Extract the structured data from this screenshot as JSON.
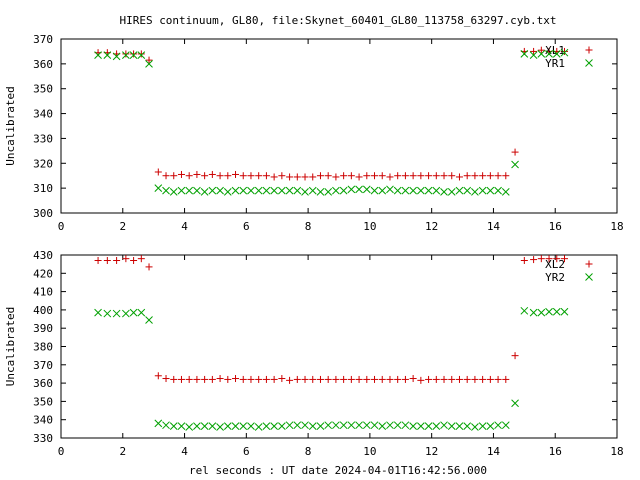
{
  "chart_data": [
    {
      "type": "scatter",
      "title": "HIRES continuum, GL80, file:Skynet_60401_GL80_113758_63297.cyb.txt",
      "xlabel": "",
      "ylabel": "Uncalibrated",
      "xlim": [
        0,
        18
      ],
      "ylim": [
        300,
        370
      ],
      "xticks": [
        0,
        2,
        4,
        6,
        8,
        10,
        12,
        14,
        16,
        18
      ],
      "yticks": [
        300,
        310,
        320,
        330,
        340,
        350,
        360,
        370
      ],
      "legend_position": "top-right",
      "grid": false,
      "series": [
        {
          "name": "XL1",
          "marker": "plus",
          "color": "#cc0000",
          "x": [
            1.2,
            1.5,
            1.8,
            2.1,
            2.35,
            2.6,
            2.85,
            3.15,
            3.4,
            3.65,
            3.9,
            4.15,
            4.4,
            4.65,
            4.9,
            5.15,
            5.4,
            5.65,
            5.9,
            6.15,
            6.4,
            6.65,
            6.9,
            7.15,
            7.4,
            7.65,
            7.9,
            8.15,
            8.4,
            8.65,
            8.9,
            9.15,
            9.4,
            9.65,
            9.9,
            10.15,
            10.4,
            10.65,
            10.9,
            11.15,
            11.4,
            11.65,
            11.9,
            12.15,
            12.4,
            12.65,
            12.9,
            13.15,
            13.4,
            13.65,
            13.9,
            14.15,
            14.4,
            14.7,
            15.0,
            15.3,
            15.55,
            15.8,
            16.05,
            16.3
          ],
          "y": [
            364.5,
            364.5,
            364,
            364,
            364,
            364,
            361.5,
            316.5,
            315,
            315,
            315.5,
            315,
            315.5,
            315,
            315.5,
            315,
            315,
            315.5,
            315,
            315,
            315,
            315,
            314.5,
            315,
            314.5,
            314.5,
            314.5,
            314.5,
            315,
            315,
            314.5,
            315,
            315,
            314.5,
            315,
            315,
            315,
            314.5,
            315,
            315,
            315,
            315,
            315,
            315,
            315,
            315,
            314.5,
            315,
            315,
            315,
            315,
            315,
            315,
            324.5,
            365,
            365,
            365.5,
            365,
            365,
            365
          ]
        },
        {
          "name": "YR1",
          "marker": "cross",
          "color": "#00a000",
          "x": [
            1.2,
            1.5,
            1.8,
            2.1,
            2.35,
            2.6,
            2.85,
            3.15,
            3.4,
            3.65,
            3.9,
            4.15,
            4.4,
            4.65,
            4.9,
            5.15,
            5.4,
            5.65,
            5.9,
            6.15,
            6.4,
            6.65,
            6.9,
            7.15,
            7.4,
            7.65,
            7.9,
            8.15,
            8.4,
            8.65,
            8.9,
            9.15,
            9.4,
            9.65,
            9.9,
            10.15,
            10.4,
            10.65,
            10.9,
            11.15,
            11.4,
            11.65,
            11.9,
            12.15,
            12.4,
            12.65,
            12.9,
            13.15,
            13.4,
            13.65,
            13.9,
            14.15,
            14.4,
            14.7,
            15.0,
            15.3,
            15.55,
            15.8,
            16.05,
            16.3
          ],
          "y": [
            363.5,
            363.5,
            363,
            363.5,
            363.5,
            363.5,
            360,
            310,
            309,
            308.5,
            309,
            309,
            309,
            308.5,
            309,
            309,
            308.5,
            309,
            309,
            309,
            309,
            309,
            309,
            309,
            309,
            309,
            308.5,
            309,
            308.5,
            308.5,
            309,
            309,
            309.5,
            309.5,
            309.5,
            309,
            309,
            309.5,
            309,
            309,
            309,
            309,
            309,
            309,
            308.5,
            308.5,
            309,
            309,
            308.5,
            309,
            309,
            309,
            308.5,
            319.5,
            364,
            363.5,
            364,
            364,
            364,
            364.5
          ]
        }
      ]
    },
    {
      "type": "scatter",
      "title": "",
      "xlabel": "rel seconds : UT date 2024-04-01T16:42:56.000",
      "ylabel": "Uncalibrated",
      "xlim": [
        0,
        18
      ],
      "ylim": [
        330,
        430
      ],
      "xticks": [
        0,
        2,
        4,
        6,
        8,
        10,
        12,
        14,
        16,
        18
      ],
      "yticks": [
        330,
        340,
        350,
        360,
        370,
        380,
        390,
        400,
        410,
        420,
        430
      ],
      "legend_position": "top-right",
      "grid": false,
      "series": [
        {
          "name": "XL2",
          "marker": "plus",
          "color": "#cc0000",
          "x": [
            1.2,
            1.5,
            1.8,
            2.1,
            2.35,
            2.6,
            2.85,
            3.15,
            3.4,
            3.65,
            3.9,
            4.15,
            4.4,
            4.65,
            4.9,
            5.15,
            5.4,
            5.65,
            5.9,
            6.15,
            6.4,
            6.65,
            6.9,
            7.15,
            7.4,
            7.65,
            7.9,
            8.15,
            8.4,
            8.65,
            8.9,
            9.15,
            9.4,
            9.65,
            9.9,
            10.15,
            10.4,
            10.65,
            10.9,
            11.15,
            11.4,
            11.65,
            11.9,
            12.15,
            12.4,
            12.65,
            12.9,
            13.15,
            13.4,
            13.65,
            13.9,
            14.15,
            14.4,
            14.7,
            15.0,
            15.3,
            15.55,
            15.8,
            16.05,
            16.3
          ],
          "y": [
            427,
            427,
            427,
            428,
            427,
            428,
            423.5,
            364,
            362.5,
            362,
            362,
            362,
            362,
            362,
            362,
            362.5,
            362,
            362.5,
            362,
            362,
            362,
            362,
            362,
            362.5,
            361.5,
            362,
            362,
            362,
            362,
            362,
            362,
            362,
            362,
            362,
            362,
            362,
            362,
            362,
            362,
            362,
            362.5,
            361.5,
            362,
            362,
            362,
            362,
            362,
            362,
            362,
            362,
            362,
            362,
            362,
            375,
            427,
            427.5,
            428,
            428,
            428,
            428
          ]
        },
        {
          "name": "YR2",
          "marker": "cross",
          "color": "#00a000",
          "x": [
            1.2,
            1.5,
            1.8,
            2.1,
            2.35,
            2.6,
            2.85,
            3.15,
            3.4,
            3.65,
            3.9,
            4.15,
            4.4,
            4.65,
            4.9,
            5.15,
            5.4,
            5.65,
            5.9,
            6.15,
            6.4,
            6.65,
            6.9,
            7.15,
            7.4,
            7.65,
            7.9,
            8.15,
            8.4,
            8.65,
            8.9,
            9.15,
            9.4,
            9.65,
            9.9,
            10.15,
            10.4,
            10.65,
            10.9,
            11.15,
            11.4,
            11.65,
            11.9,
            12.15,
            12.4,
            12.65,
            12.9,
            13.15,
            13.4,
            13.65,
            13.9,
            14.15,
            14.4,
            14.7,
            15.0,
            15.3,
            15.55,
            15.8,
            16.05,
            16.3
          ],
          "y": [
            398.5,
            398,
            398,
            398,
            398.5,
            398.5,
            394.5,
            338,
            337,
            336.5,
            336.5,
            336,
            336.5,
            336.5,
            336.5,
            336,
            336.5,
            336.5,
            336.5,
            336.5,
            336,
            336.5,
            336.5,
            336.5,
            337,
            337,
            337,
            336.5,
            336.5,
            337,
            337,
            337,
            337,
            337,
            337,
            337,
            336.5,
            337,
            337,
            337,
            336.5,
            336.5,
            336.5,
            336.5,
            337,
            336.5,
            336.5,
            336.5,
            336,
            336.5,
            336.5,
            337,
            337,
            349,
            399.5,
            398.5,
            398.5,
            399,
            399,
            399
          ]
        }
      ]
    }
  ]
}
